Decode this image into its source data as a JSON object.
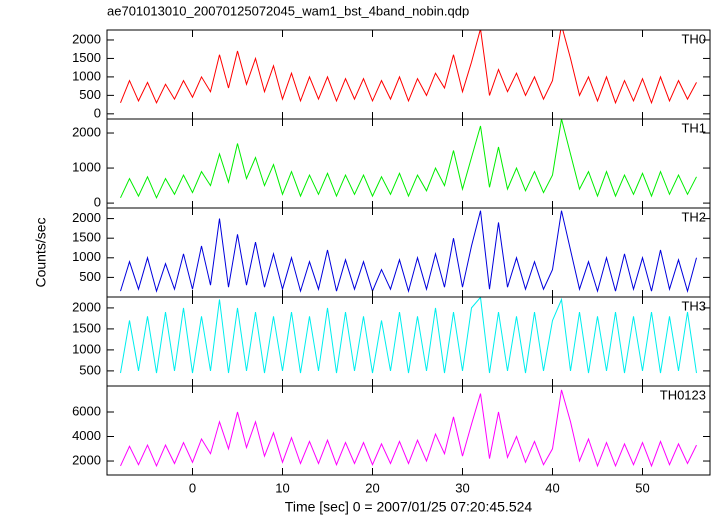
{
  "chart_data": [
    {
      "type": "line",
      "title": "ae701013010_20070125072045_wam1_bst_4band_nobin.qdp",
      "panel_label": "TH0",
      "color": "#ff0000",
      "x": [
        -8,
        -7,
        -6,
        -5,
        -4,
        -3,
        -2,
        -1,
        0,
        1,
        2,
        3,
        4,
        5,
        6,
        7,
        8,
        9,
        10,
        11,
        12,
        13,
        14,
        15,
        16,
        17,
        18,
        19,
        20,
        21,
        22,
        23,
        24,
        25,
        26,
        27,
        28,
        29,
        30,
        31,
        32,
        33,
        34,
        35,
        36,
        37,
        38,
        39,
        40,
        41,
        42,
        43,
        44,
        45,
        46,
        47,
        48,
        49,
        50,
        51,
        52,
        53,
        54,
        55,
        56
      ],
      "values": [
        300,
        900,
        350,
        850,
        300,
        800,
        400,
        900,
        450,
        1000,
        600,
        1600,
        700,
        1700,
        800,
        1500,
        600,
        1300,
        400,
        1100,
        350,
        1000,
        400,
        1000,
        350,
        950,
        400,
        950,
        350,
        900,
        400,
        1000,
        350,
        950,
        500,
        1100,
        700,
        1600,
        600,
        1400,
        2300,
        500,
        1200,
        600,
        1100,
        500,
        1000,
        400,
        900,
        2400,
        1500,
        500,
        1000,
        350,
        1000,
        300,
        900,
        350,
        950,
        300,
        1000,
        350,
        900,
        400,
        850
      ],
      "xlim": [
        -9.5,
        57.5
      ],
      "xticks": [
        0,
        10,
        20,
        30,
        40,
        50
      ],
      "ylim": [
        -140,
        2270
      ],
      "yticks": [
        0,
        500,
        1000,
        1500,
        2000
      ]
    },
    {
      "type": "line",
      "panel_label": "TH1",
      "color": "#00ee00",
      "x": [
        -8,
        -7,
        -6,
        -5,
        -4,
        -3,
        -2,
        -1,
        0,
        1,
        2,
        3,
        4,
        5,
        6,
        7,
        8,
        9,
        10,
        11,
        12,
        13,
        14,
        15,
        16,
        17,
        18,
        19,
        20,
        21,
        22,
        23,
        24,
        25,
        26,
        27,
        28,
        29,
        30,
        31,
        32,
        33,
        34,
        35,
        36,
        37,
        38,
        39,
        40,
        41,
        42,
        43,
        44,
        45,
        46,
        47,
        48,
        49,
        50,
        51,
        52,
        53,
        54,
        55,
        56
      ],
      "values": [
        150,
        700,
        200,
        750,
        150,
        700,
        250,
        800,
        300,
        900,
        500,
        1400,
        600,
        1700,
        700,
        1300,
        500,
        1100,
        250,
        900,
        200,
        800,
        250,
        850,
        200,
        800,
        250,
        800,
        200,
        750,
        250,
        850,
        200,
        800,
        350,
        1000,
        500,
        1500,
        400,
        1300,
        2200,
        450,
        1600,
        400,
        1000,
        350,
        900,
        300,
        800,
        2400,
        1400,
        400,
        900,
        200,
        900,
        200,
        800,
        250,
        850,
        200,
        900,
        250,
        800,
        250,
        750
      ],
      "xlim": [
        -9.5,
        57.5
      ],
      "xticks": [
        0,
        10,
        20,
        30,
        40,
        50
      ],
      "ylim": [
        -140,
        2400
      ],
      "yticks": [
        0,
        1000,
        2000
      ]
    },
    {
      "type": "line",
      "panel_label": "TH2",
      "y_label": "Counts/sec",
      "color": "#0000dd",
      "x": [
        -8,
        -7,
        -6,
        -5,
        -4,
        -3,
        -2,
        -1,
        0,
        1,
        2,
        3,
        4,
        5,
        6,
        7,
        8,
        9,
        10,
        11,
        12,
        13,
        14,
        15,
        16,
        17,
        18,
        19,
        20,
        21,
        22,
        23,
        24,
        25,
        26,
        27,
        28,
        29,
        30,
        31,
        32,
        33,
        34,
        35,
        36,
        37,
        38,
        39,
        40,
        41,
        42,
        43,
        44,
        45,
        46,
        47,
        48,
        49,
        50,
        51,
        52,
        53,
        54,
        55,
        56
      ],
      "values": [
        150,
        900,
        200,
        1000,
        150,
        850,
        200,
        1100,
        200,
        1300,
        300,
        2000,
        250,
        1600,
        300,
        1400,
        250,
        1100,
        200,
        1000,
        150,
        900,
        200,
        1200,
        150,
        950,
        200,
        900,
        150,
        700,
        200,
        950,
        150,
        1000,
        200,
        1100,
        250,
        1500,
        250,
        1300,
        2200,
        200,
        1900,
        250,
        1000,
        200,
        900,
        200,
        700,
        2200,
        1200,
        200,
        900,
        150,
        1000,
        150,
        1100,
        200,
        1000,
        150,
        1200,
        200,
        950,
        150,
        1000
      ],
      "xlim": [
        -9.5,
        57.5
      ],
      "xticks": [
        0,
        10,
        20,
        30,
        40,
        50
      ],
      "ylim": [
        0,
        2270
      ],
      "yticks": [
        500,
        1000,
        1500,
        2000
      ]
    },
    {
      "type": "line",
      "panel_label": "TH3",
      "color": "#00eeee",
      "x": [
        -8,
        -7,
        -6,
        -5,
        -4,
        -3,
        -2,
        -1,
        0,
        1,
        2,
        3,
        4,
        5,
        6,
        7,
        8,
        9,
        10,
        11,
        12,
        13,
        14,
        15,
        16,
        17,
        18,
        19,
        20,
        21,
        22,
        23,
        24,
        25,
        26,
        27,
        28,
        29,
        30,
        31,
        32,
        33,
        34,
        35,
        36,
        37,
        38,
        39,
        40,
        41,
        42,
        43,
        44,
        45,
        46,
        47,
        48,
        49,
        50,
        51,
        52,
        53,
        54,
        55,
        56
      ],
      "values": [
        450,
        1700,
        500,
        1800,
        450,
        1900,
        500,
        2000,
        450,
        1800,
        500,
        2200,
        450,
        2000,
        500,
        1900,
        450,
        1800,
        500,
        1900,
        450,
        1800,
        500,
        2000,
        450,
        1900,
        500,
        1800,
        450,
        1700,
        500,
        1900,
        450,
        1800,
        500,
        2000,
        450,
        1900,
        500,
        2000,
        2250,
        450,
        1900,
        500,
        1800,
        450,
        1900,
        500,
        1700,
        2200,
        500,
        1900,
        450,
        1800,
        500,
        1900,
        450,
        1800,
        500,
        1900,
        450,
        1800,
        500,
        1900,
        450
      ],
      "xlim": [
        -9.5,
        57.5
      ],
      "xticks": [
        0,
        10,
        20,
        30,
        40,
        50
      ],
      "ylim": [
        140,
        2260
      ],
      "yticks": [
        500,
        1000,
        1500,
        2000
      ]
    },
    {
      "type": "line",
      "panel_label": "TH0123",
      "x_label": "Time [sec] 0 = 2007/01/25 07:20:45.524",
      "color": "#ff00ff",
      "x": [
        -8,
        -7,
        -6,
        -5,
        -4,
        -3,
        -2,
        -1,
        0,
        1,
        2,
        3,
        4,
        5,
        6,
        7,
        8,
        9,
        10,
        11,
        12,
        13,
        14,
        15,
        16,
        17,
        18,
        19,
        20,
        21,
        22,
        23,
        24,
        25,
        26,
        27,
        28,
        29,
        30,
        31,
        32,
        33,
        34,
        35,
        36,
        37,
        38,
        39,
        40,
        41,
        42,
        43,
        44,
        45,
        46,
        47,
        48,
        49,
        50,
        51,
        52,
        53,
        54,
        55,
        56
      ],
      "values": [
        1600,
        3200,
        1700,
        3300,
        1600,
        3300,
        1800,
        3500,
        1900,
        3800,
        2600,
        5200,
        3000,
        6000,
        3100,
        5200,
        2400,
        4300,
        1900,
        3900,
        1800,
        3600,
        1800,
        3700,
        1700,
        3500,
        1800,
        3500,
        1700,
        3400,
        1800,
        3600,
        1800,
        3700,
        2000,
        4200,
        2600,
        5600,
        2400,
        5000,
        7500,
        2200,
        6000,
        2300,
        4000,
        1900,
        3600,
        1700,
        3000,
        7800,
        5200,
        2000,
        3800,
        1600,
        3500,
        1600,
        3400,
        1700,
        3500,
        1600,
        3600,
        1700,
        3400,
        1800,
        3300
      ],
      "xlim": [
        -9.5,
        57.5
      ],
      "xticks": [
        0,
        10,
        20,
        30,
        40,
        50
      ],
      "ylim": [
        860,
        8120
      ],
      "yticks": [
        2000,
        4000,
        6000
      ]
    }
  ]
}
